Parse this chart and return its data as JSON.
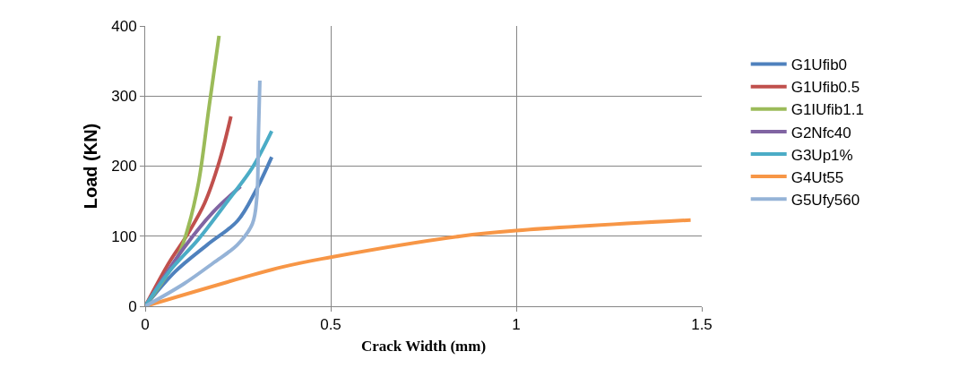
{
  "chart_data": {
    "type": "line",
    "xlabel": "Crack Width (mm)",
    "ylabel": "Load (KN)",
    "xlim": [
      0,
      1.5
    ],
    "xticks": [
      0,
      0.5,
      1,
      1.5
    ],
    "ylim": [
      0,
      400
    ],
    "yticks": [
      0,
      100,
      200,
      300,
      400
    ],
    "grid": true,
    "legend": "right",
    "marker": "none",
    "line_style": "solid",
    "series": [
      {
        "name": "G1Ufib0",
        "color": "#4f81bd",
        "x": [
          0,
          0.08,
          0.168,
          0.249,
          0.297,
          0.341
        ],
        "values": [
          0,
          49,
          88,
          122,
          164,
          213
        ]
      },
      {
        "name": "G1Ufib0.5",
        "color": "#c0504d",
        "x": [
          0,
          0.064,
          0.112,
          0.16,
          0.2,
          0.231
        ],
        "values": [
          0,
          62,
          101,
          147,
          207,
          271
        ]
      },
      {
        "name": "G1IUfib1.1",
        "color": "#9bbb59",
        "x": [
          0,
          0.088,
          0.116,
          0.144,
          0.172,
          0.199
        ],
        "values": [
          0,
          71,
          113,
          177,
          284,
          386
        ]
      },
      {
        "name": "G2Nfc40",
        "color": "#8064a2",
        "x": [
          0,
          0.104,
          0.184,
          0.257
        ],
        "values": [
          0,
          83,
          135,
          171
        ]
      },
      {
        "name": "G3Up1%",
        "color": "#4bacc6",
        "x": [
          0,
          0.064,
          0.144,
          0.225,
          0.289,
          0.341
        ],
        "values": [
          0,
          49,
          96,
          152,
          198,
          250
        ]
      },
      {
        "name": "G4Ut55",
        "color": "#f79646",
        "x": [
          0,
          0.37,
          0.5,
          0.85,
          1,
          1.47
        ],
        "values": [
          0,
          56,
          70,
          100,
          108,
          123
        ]
      },
      {
        "name": "G5Ufy560",
        "color": "#95b3d7",
        "x": [
          0,
          0.104,
          0.184,
          0.249,
          0.289,
          0.301,
          0.305,
          0.309
        ],
        "values": [
          0,
          32,
          62,
          88,
          118,
          156,
          241,
          322
        ]
      }
    ]
  }
}
